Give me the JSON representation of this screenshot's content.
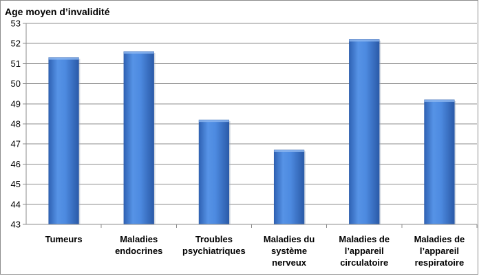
{
  "chart_data": {
    "type": "bar",
    "title": "",
    "xlabel": "",
    "ylabel": "Age moyen d’invalidité",
    "ylim": [
      43,
      53
    ],
    "yticks": [
      43,
      44,
      45,
      46,
      47,
      48,
      49,
      50,
      51,
      52,
      53
    ],
    "grid": true,
    "legend": "none",
    "bar_color": "#4a86dd",
    "categories": [
      [
        "Tumeurs"
      ],
      [
        "Maladies",
        "endocrines"
      ],
      [
        "Troubles",
        "psychiatriques"
      ],
      [
        "Maladies du",
        "système",
        "nerveux"
      ],
      [
        "Maladies de",
        "l’appareil",
        "circulatoire"
      ],
      [
        "Maladies de",
        "l’appareil",
        "respiratoire"
      ]
    ],
    "values": [
      51.3,
      51.6,
      48.2,
      46.7,
      52.2,
      49.2
    ]
  }
}
